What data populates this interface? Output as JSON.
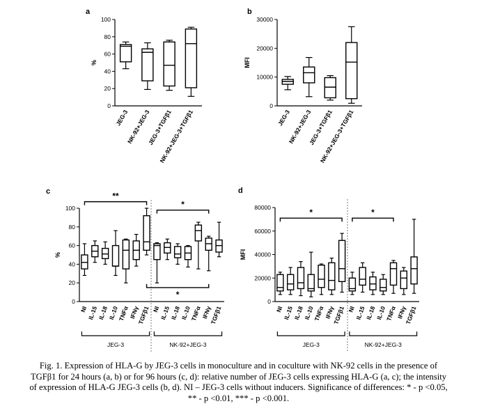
{
  "caption": "Fig. 1. Expression of HLA-G by JEG-3 cells in monoculture and in coculture with NK-92 cells in the presence of TGFβ1 for 24 hours (a, b) or for 96 hours (c, d): relative number of JEG-3 cells expressing HLA-G (a, c); the intensity of expression of HLA-G JEG-3 cells (b, d). NI – JEG-3 cells without inducers. Significance of differences: * - p <0.05, ** - p <0.01, *** - p <0.001.",
  "chart_data": [
    {
      "panel": "a",
      "type": "box",
      "ylabel": "%",
      "ylim": [
        0,
        100
      ],
      "yticks": [
        0,
        20,
        40,
        60,
        80,
        100
      ],
      "categories": [
        "JEG-3",
        "NK-92+JEG-3",
        "JEG-3+TGFβ1",
        "NK-92+JEG-3+TGFβ1"
      ],
      "boxes": [
        {
          "min": 43,
          "q1": 51,
          "median": 69,
          "q3": 71,
          "max": 74
        },
        {
          "min": 19,
          "q1": 29,
          "median": 62,
          "q3": 66,
          "max": 73
        },
        {
          "min": 18,
          "q1": 23,
          "median": 47,
          "q3": 74,
          "max": 76
        },
        {
          "min": 11,
          "q1": 21,
          "median": 72,
          "q3": 89,
          "max": 91
        }
      ],
      "brackets": []
    },
    {
      "panel": "b",
      "type": "box",
      "ylabel": "MFI",
      "ylim": [
        0,
        30000
      ],
      "yticks": [
        0,
        10000,
        20000,
        30000
      ],
      "categories": [
        "JEG-3",
        "NK-92+JEG-3",
        "JEG-3+TGFβ1",
        "NK-92+JEG-3+TGFβ1"
      ],
      "boxes": [
        {
          "min": 5600,
          "q1": 7500,
          "median": 8500,
          "q3": 9200,
          "max": 10200
        },
        {
          "min": 3200,
          "q1": 8000,
          "median": 11500,
          "q3": 13500,
          "max": 16800
        },
        {
          "min": 2000,
          "q1": 2800,
          "median": 6500,
          "q3": 9800,
          "max": 10500
        },
        {
          "min": 900,
          "q1": 2500,
          "median": 15200,
          "q3": 22000,
          "max": 27500
        }
      ],
      "brackets": []
    },
    {
      "panel": "c",
      "type": "box",
      "ylabel": "%",
      "ylim": [
        0,
        100
      ],
      "yticks": [
        0,
        20,
        40,
        60,
        80,
        100
      ],
      "categories": [
        "NI",
        "IL-15",
        "IL-18",
        "IL-10",
        "TNFα",
        "IFNγ",
        "TGFβ1",
        "NI",
        "IL-15",
        "IL-18",
        "IL-10",
        "TNFα",
        "IFNγ",
        "TGFβ1"
      ],
      "groups": [
        "JEG-3",
        "NK-92+JEG-3"
      ],
      "boxes": [
        {
          "min": 28,
          "q1": 35,
          "median": 42,
          "q3": 50,
          "max": 62
        },
        {
          "min": 42,
          "q1": 48,
          "median": 54,
          "q3": 60,
          "max": 65
        },
        {
          "min": 40,
          "q1": 46,
          "median": 51,
          "q3": 57,
          "max": 64
        },
        {
          "min": 28,
          "q1": 38,
          "median": 38,
          "q3": 60,
          "max": 76
        },
        {
          "min": 20,
          "q1": 35,
          "median": 55,
          "q3": 66,
          "max": 67
        },
        {
          "min": 38,
          "q1": 45,
          "median": 55,
          "q3": 65,
          "max": 72
        },
        {
          "min": 50,
          "q1": 55,
          "median": 64,
          "q3": 92,
          "max": 100
        },
        {
          "min": 20,
          "q1": 45,
          "median": 60,
          "q3": 62,
          "max": 63
        },
        {
          "min": 45,
          "q1": 52,
          "median": 58,
          "q3": 63,
          "max": 67
        },
        {
          "min": 40,
          "q1": 47,
          "median": 51,
          "q3": 59,
          "max": 62
        },
        {
          "min": 37,
          "q1": 45,
          "median": 52,
          "q3": 59,
          "max": 60
        },
        {
          "min": 35,
          "q1": 65,
          "median": 76,
          "q3": 82,
          "max": 85
        },
        {
          "min": 33,
          "q1": 55,
          "median": 62,
          "q3": 68,
          "max": 70
        },
        {
          "min": 48,
          "q1": 53,
          "median": 60,
          "q3": 66,
          "max": 85
        }
      ],
      "brackets": [
        {
          "from": 0,
          "to": 6,
          "y": 107,
          "label": "**",
          "dir": "top"
        },
        {
          "from": 7,
          "to": 12,
          "y": 98,
          "label": "*",
          "dir": "top"
        },
        {
          "from": 6,
          "to": 12,
          "y": 15,
          "label": "*",
          "dir": "bottom"
        }
      ]
    },
    {
      "panel": "d",
      "type": "box",
      "ylabel": "MFI",
      "ylim": [
        0,
        80000
      ],
      "yticks": [
        0,
        20000,
        40000,
        60000,
        80000
      ],
      "categories": [
        "NI",
        "IL-15",
        "IL-18",
        "IL-10",
        "TNFα",
        "IFNγ",
        "TGFβ1",
        "NI",
        "IL-15",
        "IL-18",
        "IL-10",
        "TNFα",
        "IFNγ",
        "TGFβ1"
      ],
      "groups": [
        "JEG-3",
        "NK-92+JEG-3"
      ],
      "boxes": [
        {
          "min": 6000,
          "q1": 9000,
          "median": 12000,
          "q3": 23000,
          "max": 25000
        },
        {
          "min": 6000,
          "q1": 10000,
          "median": 15000,
          "q3": 23000,
          "max": 29000
        },
        {
          "min": 5000,
          "q1": 11000,
          "median": 16000,
          "q3": 29000,
          "max": 34000
        },
        {
          "min": 4000,
          "q1": 9000,
          "median": 11000,
          "q3": 23000,
          "max": 42000
        },
        {
          "min": 6000,
          "q1": 12000,
          "median": 19000,
          "q3": 31000,
          "max": 32000
        },
        {
          "min": 6000,
          "q1": 10000,
          "median": 18000,
          "q3": 33000,
          "max": 37000
        },
        {
          "min": 8000,
          "q1": 17000,
          "median": 28000,
          "q3": 52000,
          "max": 58000
        },
        {
          "min": 6000,
          "q1": 9000,
          "median": 11000,
          "q3": 20000,
          "max": 25000
        },
        {
          "min": 8000,
          "q1": 14000,
          "median": 19000,
          "q3": 29000,
          "max": 33000
        },
        {
          "min": 6000,
          "q1": 10000,
          "median": 15000,
          "q3": 21000,
          "max": 25000
        },
        {
          "min": 6000,
          "q1": 9000,
          "median": 12000,
          "q3": 19000,
          "max": 23000
        },
        {
          "min": 7000,
          "q1": 14000,
          "median": 28000,
          "q3": 33000,
          "max": 35000
        },
        {
          "min": 6000,
          "q1": 11000,
          "median": 20000,
          "q3": 26000,
          "max": 29000
        },
        {
          "min": 7000,
          "q1": 15000,
          "median": 28000,
          "q3": 38000,
          "max": 70000
        }
      ],
      "brackets": [
        {
          "from": 0,
          "to": 6,
          "y": 71000,
          "label": "*",
          "dir": "top"
        },
        {
          "from": 7,
          "to": 11,
          "y": 71000,
          "label": "*",
          "dir": "top"
        }
      ]
    }
  ]
}
